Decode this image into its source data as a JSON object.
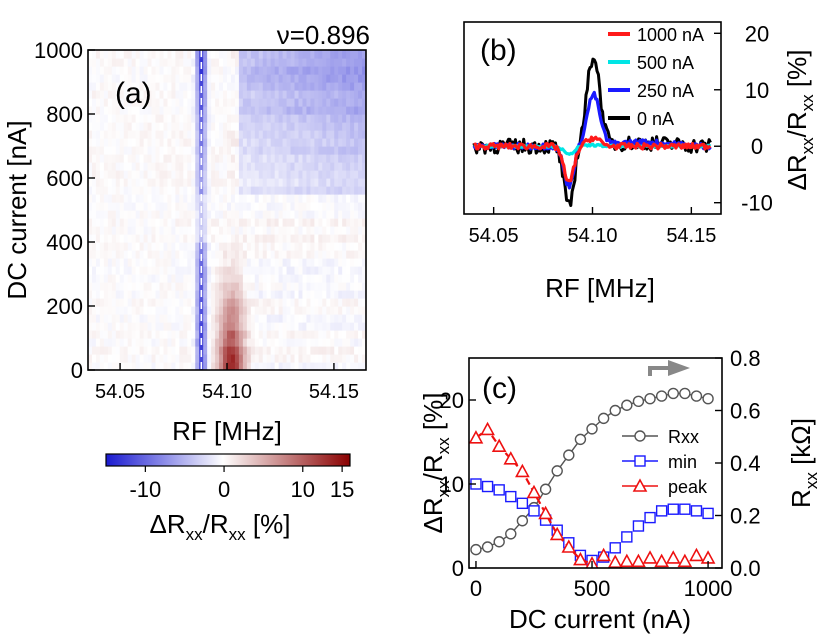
{
  "chart_data": [
    {
      "panel": "(a)",
      "type": "heatmap",
      "title": "ν=0.896",
      "xlabel": "RF [MHz]",
      "ylabel": "DC current [nA]",
      "xlim": [
        54.035,
        54.165
      ],
      "ylim": [
        0,
        1000
      ],
      "xticks": [
        "54.05",
        "54.10",
        "54.15"
      ],
      "yticks": [
        "0",
        "200",
        "400",
        "600",
        "800",
        "1000"
      ],
      "colorbar": {
        "label": "ΔRxx/Rxx [%]",
        "range": [
          -15,
          16
        ],
        "ticks": [
          "-10",
          "0",
          "10",
          "15"
        ],
        "colors": [
          "#1a1ad0",
          "#ffffff",
          "#8a0000"
        ]
      },
      "dashed_line_x": 54.088,
      "min_freq": 54.088,
      "peak_freq": 54.1
    },
    {
      "panel": "(b)",
      "type": "line",
      "xlabel": "RF [MHz]",
      "ylabel": "ΔRxx/Rxx [%]",
      "xlim": [
        54.035,
        54.165
      ],
      "ylim": [
        -12,
        22
      ],
      "xticks": [
        "54.05",
        "54.10",
        "54.15"
      ],
      "yticks": [
        "-10",
        "0",
        "10",
        "20"
      ],
      "series": [
        {
          "name": "1000 nA",
          "color": "#ff1a1a",
          "min": -6.5,
          "peak": 1.5
        },
        {
          "name": "500 nA",
          "color": "#00e5e5",
          "min": -1.5,
          "peak": 0.2
        },
        {
          "name": "250 nA",
          "color": "#1a1aff",
          "min": -7,
          "peak": 9
        },
        {
          "name": "0 nA",
          "color": "#000000",
          "min": -11,
          "peak": 16
        }
      ]
    },
    {
      "panel": "(c)",
      "type": "scatter",
      "xlabel": "DC current (nA)",
      "ylabel": "ΔRxx/Rxx [%]",
      "ylabel_right": "Rxx [kΩ]",
      "xlim": [
        -30,
        1060
      ],
      "ylim": [
        0,
        25
      ],
      "ylim_right": [
        0,
        0.8
      ],
      "xticks": [
        "0",
        "500",
        "1000"
      ],
      "yticks": [
        "0",
        "10",
        "20"
      ],
      "yticks_right": [
        "0.0",
        "0.2",
        "0.4",
        "0.6",
        "0.8"
      ],
      "x": [
        0,
        50,
        100,
        150,
        200,
        250,
        300,
        350,
        400,
        450,
        500,
        550,
        600,
        650,
        700,
        750,
        800,
        850,
        900,
        950,
        1000
      ],
      "series": [
        {
          "name": "Rxx",
          "axis": "right",
          "marker": "circle",
          "color": "#555555",
          "values": [
            0.07,
            0.08,
            0.1,
            0.13,
            0.18,
            0.23,
            0.3,
            0.37,
            0.43,
            0.49,
            0.53,
            0.57,
            0.6,
            0.62,
            0.635,
            0.645,
            0.655,
            0.665,
            0.665,
            0.655,
            0.645
          ]
        },
        {
          "name": "min",
          "axis": "left",
          "marker": "square",
          "color": "#1a1aff",
          "values": [
            10,
            9.7,
            9.3,
            8.5,
            7.7,
            6.8,
            5.7,
            4.5,
            3.0,
            1.5,
            0.9,
            1.3,
            2.4,
            3.7,
            5.0,
            6.0,
            6.8,
            7.0,
            7.0,
            6.8,
            6.5
          ]
        },
        {
          "name": "peak",
          "axis": "left",
          "marker": "triangle",
          "color": "#ee1111",
          "values": [
            15.5,
            16.5,
            14.5,
            13.0,
            11.5,
            9.0,
            6.5,
            4.0,
            2.5,
            1.0,
            0.5,
            1.5,
            0.7,
            0.8,
            0.8,
            1.2,
            0.8,
            1.2,
            0.8,
            1.5,
            1.2
          ]
        }
      ]
    }
  ]
}
